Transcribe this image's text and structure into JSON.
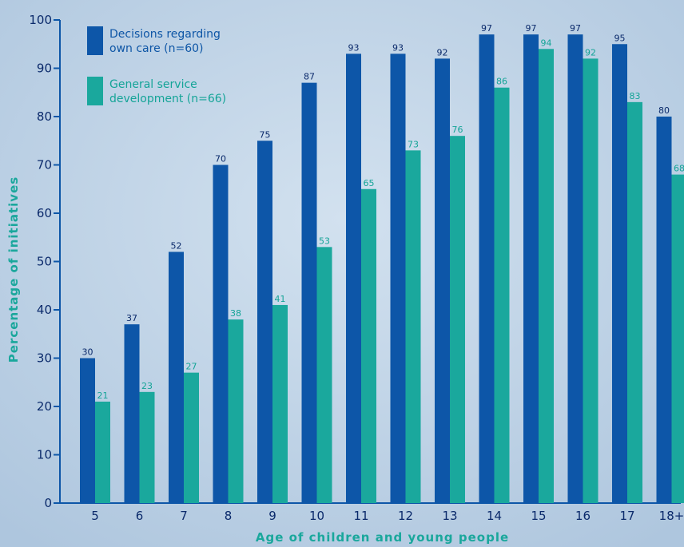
{
  "chart_data": {
    "type": "bar",
    "title": "",
    "xlabel": "Age of children and young people",
    "ylabel": "Percentage of initiatives",
    "ylim": [
      0,
      100
    ],
    "yticks": [
      0,
      10,
      20,
      30,
      40,
      50,
      60,
      70,
      80,
      90,
      100
    ],
    "grid": false,
    "legend_position": "top-left",
    "categories": [
      "5",
      "6",
      "7",
      "8",
      "9",
      "10",
      "11",
      "12",
      "13",
      "14",
      "15",
      "16",
      "17",
      "18+"
    ],
    "series": [
      {
        "name": "Decisions regarding own care (n=60)",
        "legend_lines": [
          "Decisions regarding",
          "own care (n=60)"
        ],
        "color": "#0d56a8",
        "label_color": "#0b2a6b",
        "values": [
          30,
          37,
          52,
          70,
          75,
          87,
          93,
          93,
          92,
          97,
          97,
          97,
          95,
          80
        ]
      },
      {
        "name": "General service development (n=66)",
        "legend_lines": [
          "General service",
          "development (n=66)"
        ],
        "color": "#1aa89d",
        "label_color": "#14a497",
        "values": [
          21,
          23,
          27,
          38,
          41,
          53,
          65,
          73,
          76,
          86,
          94,
          92,
          83,
          68
        ]
      }
    ]
  }
}
